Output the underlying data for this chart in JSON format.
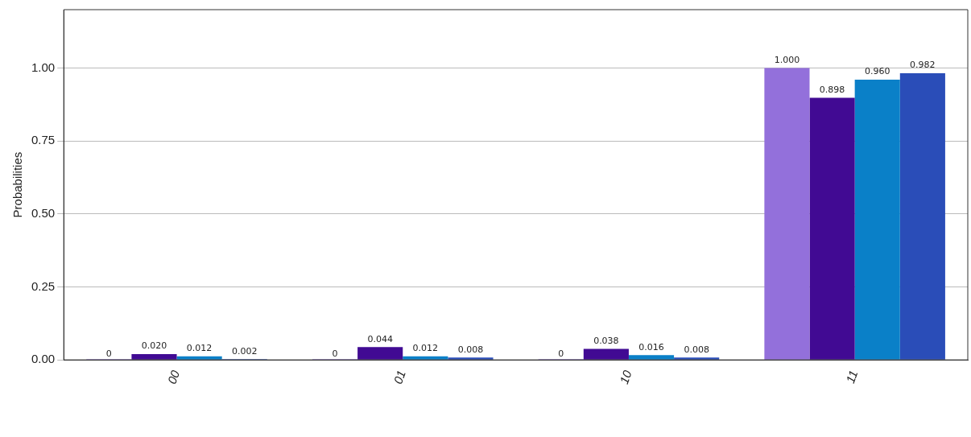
{
  "chart_data": {
    "type": "bar",
    "ylabel": "Probabilities",
    "categories": [
      "00",
      "01",
      "10",
      "11"
    ],
    "series": [
      {
        "color": "#9370db",
        "values": [
          0,
          0,
          0,
          1.0
        ],
        "value_labels": [
          "0",
          "0",
          "0",
          "1.000"
        ]
      },
      {
        "color": "#410a93",
        "values": [
          0.02,
          0.044,
          0.038,
          0.898
        ],
        "value_labels": [
          "0.020",
          "0.044",
          "0.038",
          "0.898"
        ]
      },
      {
        "color": "#0a80c8",
        "values": [
          0.012,
          0.012,
          0.016,
          0.96
        ],
        "value_labels": [
          "0.012",
          "0.012",
          "0.016",
          "0.960"
        ]
      },
      {
        "color": "#2a4db8",
        "values": [
          0.002,
          0.008,
          0.008,
          0.982
        ],
        "value_labels": [
          "0.002",
          "0.008",
          "0.008",
          "0.982"
        ]
      }
    ],
    "ylim": [
      0,
      1.2
    ],
    "yticks": [
      {
        "value": 0,
        "label": "0.00"
      },
      {
        "value": 0.25,
        "label": "0.25"
      },
      {
        "value": 0.5,
        "label": "0.50"
      },
      {
        "value": 0.75,
        "label": "0.75"
      },
      {
        "value": 1,
        "label": "1.00"
      }
    ],
    "grid": "y"
  }
}
